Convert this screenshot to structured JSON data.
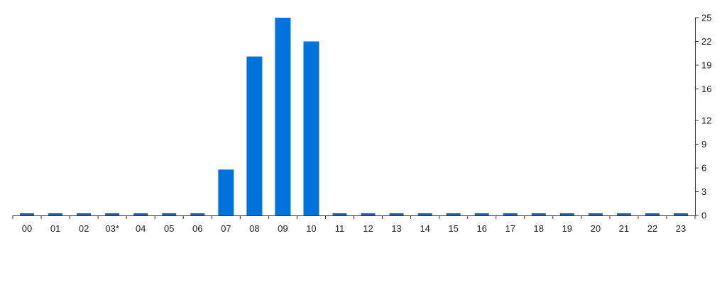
{
  "chart_data": {
    "type": "bar",
    "categories": [
      "00",
      "01",
      "02",
      "03*",
      "04",
      "05",
      "06",
      "07",
      "08",
      "09",
      "10",
      "11",
      "12",
      "13",
      "14",
      "15",
      "16",
      "17",
      "18",
      "19",
      "20",
      "21",
      "22",
      "23"
    ],
    "values": [
      0,
      0,
      0,
      0,
      0,
      0,
      0,
      5.8,
      20.1,
      25,
      22,
      0,
      0,
      0,
      0,
      0,
      0,
      0,
      0,
      0,
      0,
      0,
      0,
      0
    ],
    "ylim": [
      0,
      25
    ],
    "yticks": [
      0,
      3,
      6,
      9,
      12,
      16,
      19,
      22,
      25
    ],
    "y_axis_side": "right",
    "grid": false,
    "title": "",
    "xlabel": "",
    "ylabel": "",
    "colors": {
      "bar": "#0073dd",
      "zero_bar": "#1f5f9e",
      "axis": "#333333"
    }
  }
}
